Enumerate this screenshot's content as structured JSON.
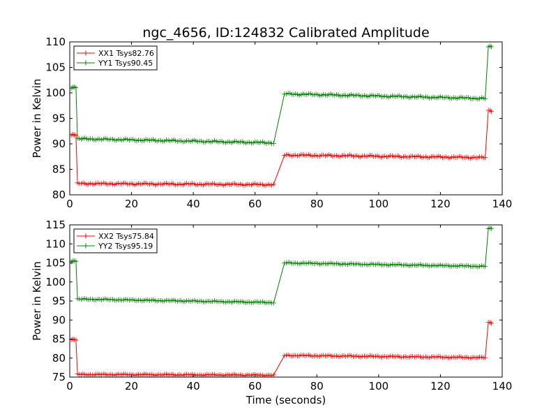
{
  "chart_data": {
    "title": "ngc_4656, ID:124832 Calibrated Amplitude",
    "xlabel": "Time (seconds)",
    "panels": [
      {
        "type": "line",
        "ylabel": "Power in Kelvin",
        "xlim": [
          0,
          140
        ],
        "ylim": [
          80,
          110
        ],
        "xticks": [
          0,
          20,
          40,
          60,
          80,
          100,
          120,
          140
        ],
        "yticks": [
          80,
          85,
          90,
          95,
          100,
          105,
          110
        ],
        "legend_position": "top-left",
        "series": [
          {
            "name": "XX1 Tsys82.76",
            "color": "#ff0000",
            "segments": [
              {
                "x_start": 0.5,
                "x_end": 2.0,
                "value": 91.7
              },
              {
                "x_start": 2.5,
                "x_end": 66.0,
                "value": 82.2,
                "sag_to": 82.0
              },
              {
                "x_start": 69.5,
                "x_end": 134.5,
                "value": 87.8,
                "sag_to": 87.3
              },
              {
                "x_start": 135.5,
                "x_end": 136.5,
                "value": 96.5
              }
            ],
            "transitions": [
              [
                2.0,
                2.5
              ],
              [
                66.0,
                69.5
              ],
              [
                134.5,
                135.5
              ]
            ]
          },
          {
            "name": "YY1 Tsys90.45",
            "color": "#008000",
            "segments": [
              {
                "x_start": 0.5,
                "x_end": 2.0,
                "value": 101.1
              },
              {
                "x_start": 2.5,
                "x_end": 66.0,
                "value": 91.0,
                "sag_to": 90.2
              },
              {
                "x_start": 69.5,
                "x_end": 134.5,
                "value": 99.8,
                "sag_to": 98.9
              },
              {
                "x_start": 135.5,
                "x_end": 136.5,
                "value": 109.0
              }
            ],
            "transitions": [
              [
                2.0,
                2.5
              ],
              [
                66.0,
                69.5
              ],
              [
                134.5,
                135.5
              ]
            ]
          }
        ]
      },
      {
        "type": "line",
        "ylabel": "Power in Kelvin",
        "xlim": [
          0,
          140
        ],
        "ylim": [
          75,
          115
        ],
        "xticks": [
          0,
          20,
          40,
          60,
          80,
          100,
          120,
          140
        ],
        "yticks": [
          75,
          80,
          85,
          90,
          95,
          100,
          105,
          110,
          115
        ],
        "legend_position": "top-left",
        "series": [
          {
            "name": "XX2 Tsys75.84",
            "color": "#ff0000",
            "segments": [
              {
                "x_start": 0.5,
                "x_end": 2.0,
                "value": 84.8
              },
              {
                "x_start": 2.5,
                "x_end": 66.0,
                "value": 75.7,
                "sag_to": 75.5
              },
              {
                "x_start": 69.5,
                "x_end": 134.5,
                "value": 80.7,
                "sag_to": 80.1
              },
              {
                "x_start": 135.5,
                "x_end": 136.5,
                "value": 89.3
              }
            ],
            "transitions": [
              [
                2.0,
                2.5
              ],
              [
                66.0,
                69.5
              ],
              [
                134.5,
                135.5
              ]
            ]
          },
          {
            "name": "YY2 Tsys95.19",
            "color": "#008000",
            "segments": [
              {
                "x_start": 0.5,
                "x_end": 2.0,
                "value": 105.5
              },
              {
                "x_start": 2.5,
                "x_end": 66.0,
                "value": 95.5,
                "sag_to": 94.6
              },
              {
                "x_start": 69.5,
                "x_end": 134.5,
                "value": 105.0,
                "sag_to": 104.1
              },
              {
                "x_start": 135.5,
                "x_end": 136.5,
                "value": 114.0
              }
            ],
            "transitions": [
              [
                2.0,
                2.5
              ],
              [
                66.0,
                69.5
              ],
              [
                134.5,
                135.5
              ]
            ]
          }
        ]
      }
    ]
  }
}
